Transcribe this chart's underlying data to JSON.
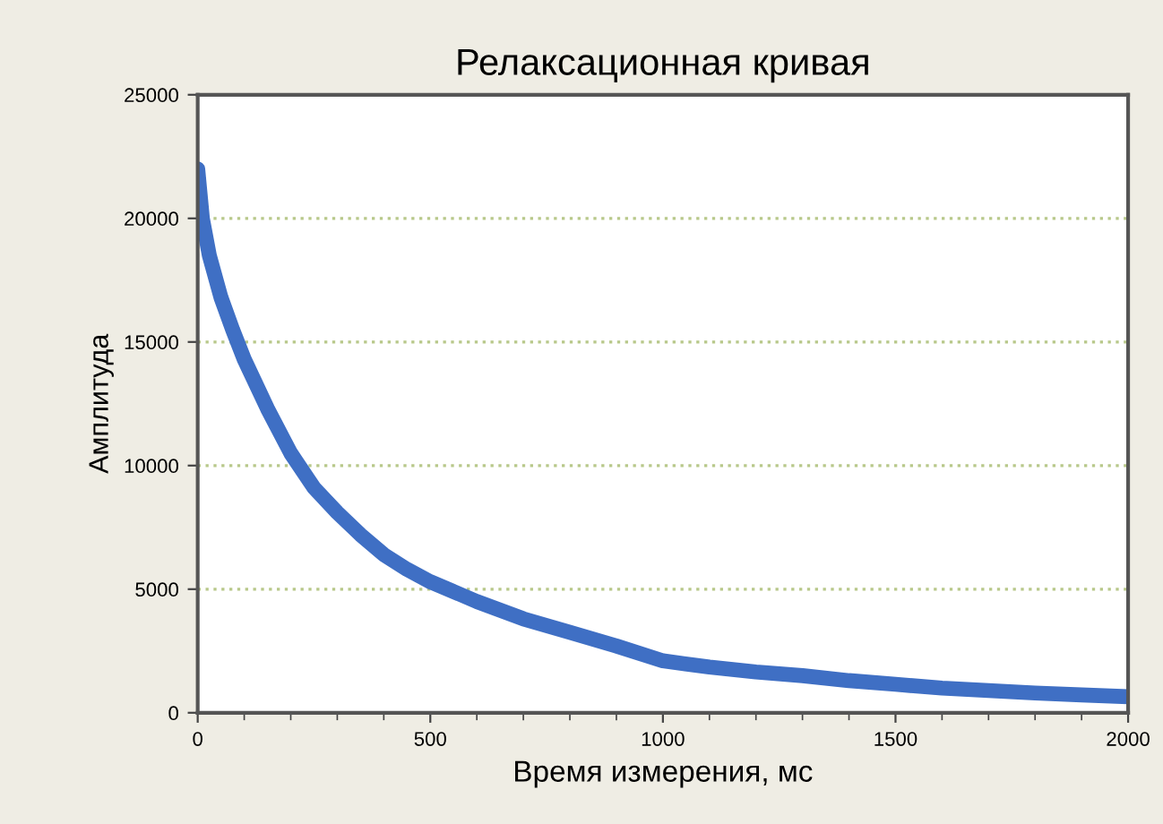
{
  "chart_data": {
    "type": "line",
    "title": "Релаксационная кривая",
    "xlabel": "Время измерения, мс",
    "ylabel": "Амплитуда",
    "series": [
      {
        "color": "#3f6fc4",
        "x": [
          0,
          5,
          10,
          25,
          50,
          75,
          100,
          150,
          200,
          250,
          300,
          350,
          400,
          450,
          500,
          600,
          700,
          800,
          900,
          1000,
          1100,
          1200,
          1300,
          1400,
          1500,
          1600,
          1700,
          1800,
          1900,
          2000
        ],
        "values": [
          22000,
          21000,
          20000,
          18500,
          16800,
          15500,
          14300,
          12300,
          10500,
          9100,
          8100,
          7200,
          6400,
          5800,
          5300,
          4500,
          3800,
          3250,
          2700,
          2100,
          1850,
          1650,
          1500,
          1300,
          1150,
          1000,
          900,
          800,
          720,
          650
        ]
      }
    ],
    "xlim": [
      0,
      2000
    ],
    "xticks": [
      0,
      500,
      1000,
      1500,
      2000
    ],
    "ylim": [
      0,
      25000
    ],
    "yticks": [
      0,
      5000,
      10000,
      15000,
      20000,
      25000
    ],
    "grid": "y",
    "marker": "none",
    "line_style": "solid"
  }
}
